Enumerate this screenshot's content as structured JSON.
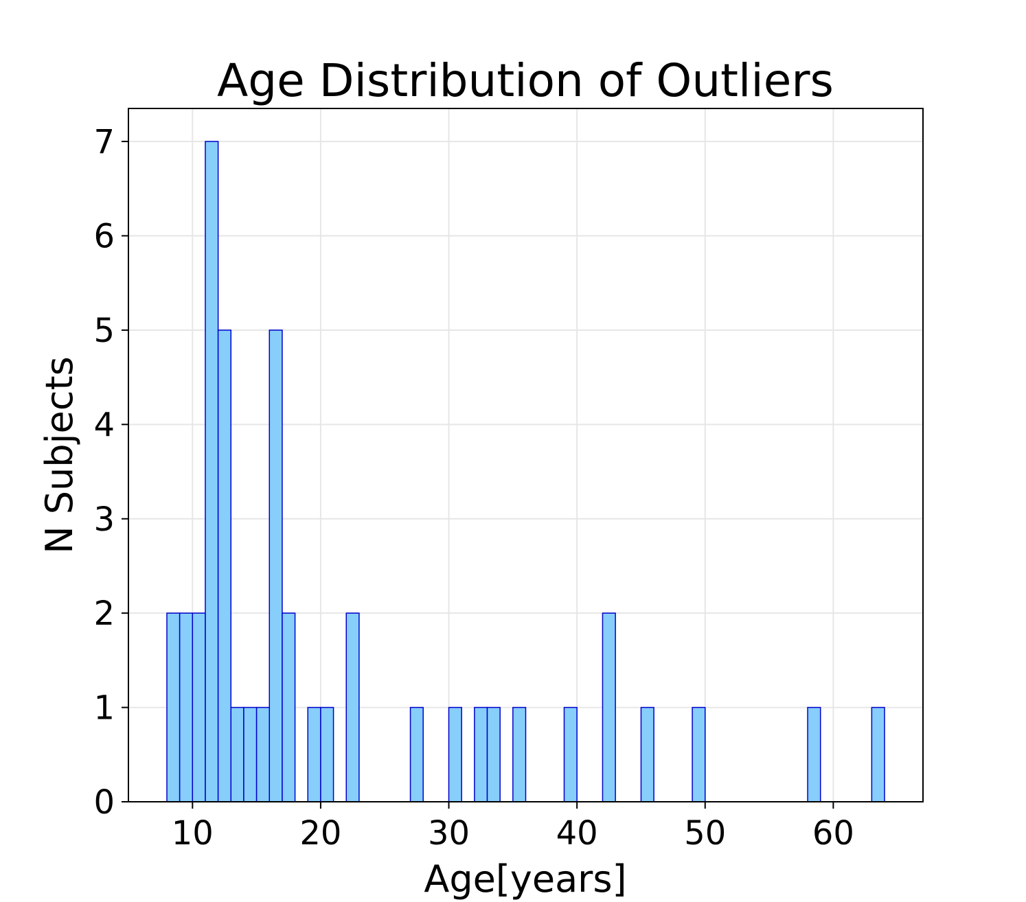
{
  "chart_data": {
    "type": "bar",
    "title": "Age Distribution of Outliers",
    "xlabel": "Age[years]",
    "ylabel": "N Subjects",
    "xlim": [
      5,
      67
    ],
    "ylim": [
      0,
      7.35
    ],
    "xticks": [
      10,
      20,
      30,
      40,
      50,
      60
    ],
    "yticks": [
      0,
      1,
      2,
      3,
      4,
      5,
      6,
      7
    ],
    "grid": true,
    "bar_color": "#87cefa",
    "edge_color": "#0000cd",
    "bins": [
      {
        "start": 8.0,
        "end": 9.0,
        "count": 2
      },
      {
        "start": 9.0,
        "end": 10.0,
        "count": 2
      },
      {
        "start": 10.0,
        "end": 11.0,
        "count": 2
      },
      {
        "start": 11.0,
        "end": 12.0,
        "count": 7
      },
      {
        "start": 12.0,
        "end": 13.0,
        "count": 5
      },
      {
        "start": 13.0,
        "end": 14.0,
        "count": 1
      },
      {
        "start": 14.0,
        "end": 15.0,
        "count": 1
      },
      {
        "start": 15.0,
        "end": 16.0,
        "count": 1
      },
      {
        "start": 16.0,
        "end": 17.0,
        "count": 5
      },
      {
        "start": 17.0,
        "end": 18.0,
        "count": 2
      },
      {
        "start": 19.0,
        "end": 20.0,
        "count": 1
      },
      {
        "start": 20.0,
        "end": 21.0,
        "count": 1
      },
      {
        "start": 22.0,
        "end": 23.0,
        "count": 2
      },
      {
        "start": 27.0,
        "end": 28.0,
        "count": 1
      },
      {
        "start": 30.0,
        "end": 31.0,
        "count": 1
      },
      {
        "start": 32.0,
        "end": 33.0,
        "count": 1
      },
      {
        "start": 33.0,
        "end": 34.0,
        "count": 1
      },
      {
        "start": 35.0,
        "end": 36.0,
        "count": 1
      },
      {
        "start": 39.0,
        "end": 40.0,
        "count": 1
      },
      {
        "start": 42.0,
        "end": 43.0,
        "count": 2
      },
      {
        "start": 45.0,
        "end": 46.0,
        "count": 1
      },
      {
        "start": 49.0,
        "end": 50.0,
        "count": 1
      },
      {
        "start": 58.0,
        "end": 59.0,
        "count": 1
      },
      {
        "start": 63.0,
        "end": 64.0,
        "count": 1
      }
    ]
  }
}
